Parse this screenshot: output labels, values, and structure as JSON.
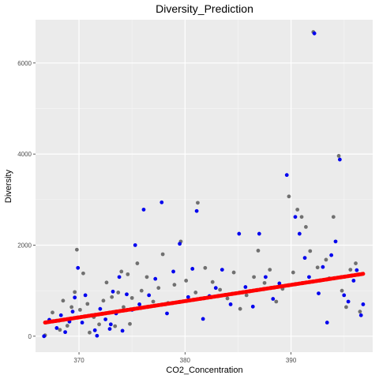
{
  "chart_data": {
    "type": "scatter",
    "title": "Diversity_Prediction",
    "xlabel": "CO2_Concentration",
    "ylabel": "Diversity",
    "xlim": [
      365.9,
      397.7
    ],
    "ylim": [
      -350,
      6950
    ],
    "x_ticks": [
      370,
      380,
      390
    ],
    "y_ticks": [
      0,
      2000,
      4000,
      6000
    ],
    "grid": true,
    "background": "#ebebeb",
    "colors": {
      "observed": "#5a5a5a",
      "predicted": "#0000ee",
      "trend": "#ff0000"
    },
    "trend_line": {
      "x": [
        366.8,
        396.8
      ],
      "y": [
        300,
        1370
      ]
    },
    "series": [
      {
        "values": [
          [
            366.8,
            20
          ],
          [
            367.5,
            520
          ],
          [
            368.1,
            340
          ],
          [
            368.5,
            780
          ],
          [
            368.9,
            230
          ],
          [
            369.3,
            640
          ],
          [
            369.6,
            970
          ],
          [
            369.8,
            1900
          ],
          [
            370.1,
            580
          ],
          [
            370.4,
            1380
          ],
          [
            370.8,
            710
          ],
          [
            371.4,
            420
          ],
          [
            371.9,
            260
          ],
          [
            372.3,
            780
          ],
          [
            372.6,
            1180
          ],
          [
            373.1,
            860
          ],
          [
            373.4,
            220
          ],
          [
            373.7,
            960
          ],
          [
            374.0,
            1420
          ],
          [
            374.2,
            640
          ],
          [
            374.6,
            1360
          ],
          [
            375.0,
            840
          ],
          [
            375.5,
            1600
          ],
          [
            375.9,
            1000
          ],
          [
            376.4,
            1300
          ],
          [
            377.0,
            760
          ],
          [
            377.5,
            1060
          ],
          [
            377.9,
            1800
          ],
          [
            378.4,
            730
          ],
          [
            379.0,
            1130
          ],
          [
            379.6,
            2080
          ],
          [
            380.1,
            1220
          ],
          [
            381.0,
            960
          ],
          [
            381.2,
            2930
          ],
          [
            381.9,
            1500
          ],
          [
            382.6,
            1190
          ],
          [
            383.3,
            1020
          ],
          [
            384.0,
            830
          ],
          [
            384.6,
            1400
          ],
          [
            385.2,
            600
          ],
          [
            385.8,
            900
          ],
          [
            386.5,
            1300
          ],
          [
            386.9,
            1880
          ],
          [
            387.5,
            1170
          ],
          [
            388.0,
            1460
          ],
          [
            388.6,
            760
          ],
          [
            389.2,
            1040
          ],
          [
            389.8,
            3070
          ],
          [
            390.2,
            1400
          ],
          [
            390.6,
            2780
          ],
          [
            391.0,
            2620
          ],
          [
            391.4,
            2400
          ],
          [
            391.8,
            1870
          ],
          [
            392.1,
            6680
          ],
          [
            392.5,
            1510
          ],
          [
            392.9,
            1230
          ],
          [
            393.3,
            1680
          ],
          [
            393.6,
            1270
          ],
          [
            394.0,
            2620
          ],
          [
            394.5,
            3960
          ],
          [
            394.8,
            1000
          ],
          [
            395.2,
            640
          ],
          [
            395.6,
            1460
          ],
          [
            396.1,
            1600
          ],
          [
            396.5,
            540
          ],
          [
            374.8,
            270
          ],
          [
            371.0,
            80
          ],
          [
            368.2,
            140
          ]
        ]
      },
      {
        "values": [
          [
            366.7,
            0
          ],
          [
            367.2,
            360
          ],
          [
            367.9,
            180
          ],
          [
            368.3,
            460
          ],
          [
            368.7,
            90
          ],
          [
            369.1,
            320
          ],
          [
            369.4,
            540
          ],
          [
            369.9,
            1500
          ],
          [
            370.3,
            300
          ],
          [
            370.6,
            900
          ],
          [
            371.0,
            450
          ],
          [
            371.5,
            130
          ],
          [
            372.0,
            600
          ],
          [
            372.5,
            370
          ],
          [
            372.9,
            160
          ],
          [
            373.2,
            980
          ],
          [
            373.5,
            500
          ],
          [
            373.8,
            1300
          ],
          [
            374.1,
            120
          ],
          [
            374.5,
            920
          ],
          [
            375.0,
            580
          ],
          [
            375.3,
            2000
          ],
          [
            375.7,
            700
          ],
          [
            376.1,
            2780
          ],
          [
            376.6,
            900
          ],
          [
            377.2,
            1260
          ],
          [
            377.8,
            2940
          ],
          [
            378.3,
            500
          ],
          [
            378.9,
            1420
          ],
          [
            379.5,
            2030
          ],
          [
            380.3,
            860
          ],
          [
            380.7,
            1480
          ],
          [
            381.1,
            2750
          ],
          [
            381.7,
            380
          ],
          [
            382.3,
            880
          ],
          [
            382.9,
            1060
          ],
          [
            383.5,
            1460
          ],
          [
            384.3,
            700
          ],
          [
            385.1,
            2250
          ],
          [
            385.7,
            1080
          ],
          [
            386.4,
            650
          ],
          [
            387.0,
            2250
          ],
          [
            387.6,
            1300
          ],
          [
            388.3,
            820
          ],
          [
            388.9,
            1160
          ],
          [
            389.6,
            3540
          ],
          [
            390.4,
            2620
          ],
          [
            390.8,
            2250
          ],
          [
            391.3,
            1720
          ],
          [
            391.7,
            1300
          ],
          [
            392.2,
            6650
          ],
          [
            392.6,
            940
          ],
          [
            393.0,
            1520
          ],
          [
            393.4,
            300
          ],
          [
            393.8,
            1780
          ],
          [
            394.2,
            2080
          ],
          [
            394.6,
            3880
          ],
          [
            395.0,
            900
          ],
          [
            395.4,
            760
          ],
          [
            395.9,
            1220
          ],
          [
            396.2,
            1450
          ],
          [
            396.6,
            460
          ],
          [
            396.8,
            700
          ],
          [
            371.7,
            10
          ],
          [
            373.0,
            260
          ],
          [
            369.6,
            850
          ]
        ]
      }
    ]
  }
}
